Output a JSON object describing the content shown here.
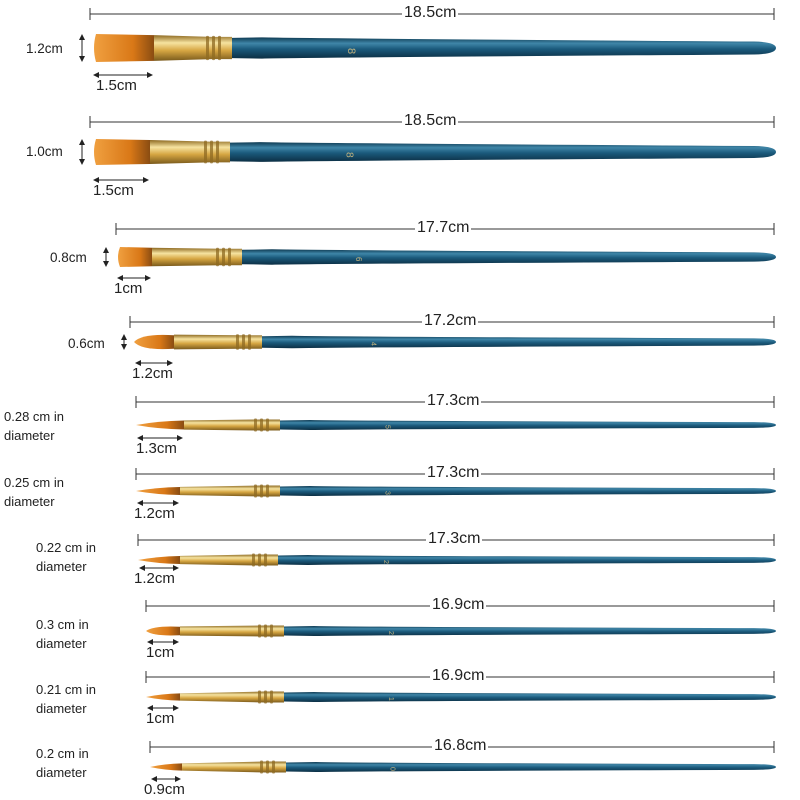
{
  "colors": {
    "handle": "#1b5a7c",
    "handle_highlight": "#3f86a8",
    "handle_shadow": "#0e3a52",
    "ferrule": "#d6a642",
    "ferrule_highlight": "#f6e3a0",
    "ferrule_shadow": "#8e6a22",
    "bristle": "#d97817",
    "bristle_dark": "#8a4c12",
    "number_text": "#e8c982"
  },
  "brushes": [
    {
      "length_label": "18.5cm",
      "width_label": "1.2cm",
      "tip_label": "1.5cm",
      "shape": "flat",
      "handle_number": "8"
    },
    {
      "length_label": "18.5cm",
      "width_label": "1.0cm",
      "tip_label": "1.5cm",
      "shape": "flat",
      "handle_number": "8"
    },
    {
      "length_label": "17.7cm",
      "width_label": "0.8cm",
      "tip_label": "1cm",
      "shape": "flat",
      "handle_number": "6"
    },
    {
      "length_label": "17.2cm",
      "width_label": "0.6cm",
      "tip_label": "1.2cm",
      "shape": "filbert",
      "handle_number": "4"
    },
    {
      "length_label": "17.3cm",
      "width_label": "0.28 cm in diameter",
      "tip_label": "1.3cm",
      "shape": "round",
      "handle_number": "5"
    },
    {
      "length_label": "17.3cm",
      "width_label": "0.25 cm in diameter",
      "tip_label": "1.2cm",
      "shape": "round",
      "handle_number": "3"
    },
    {
      "length_label": "17.3cm",
      "width_label": "0.22 cm in diameter",
      "tip_label": "1.2cm",
      "shape": "round",
      "handle_number": "2"
    },
    {
      "length_label": "16.9cm",
      "width_label": "0.3 cm in diameter",
      "tip_label": "1cm",
      "shape": "filbert",
      "handle_number": "2"
    },
    {
      "length_label": "16.9cm",
      "width_label": "0.21 cm in diameter",
      "tip_label": "1cm",
      "shape": "round",
      "handle_number": "1"
    },
    {
      "length_label": "16.8cm",
      "width_label": "0.2 cm in diameter",
      "tip_label": "0.9cm",
      "shape": "round",
      "handle_number": "0"
    }
  ]
}
